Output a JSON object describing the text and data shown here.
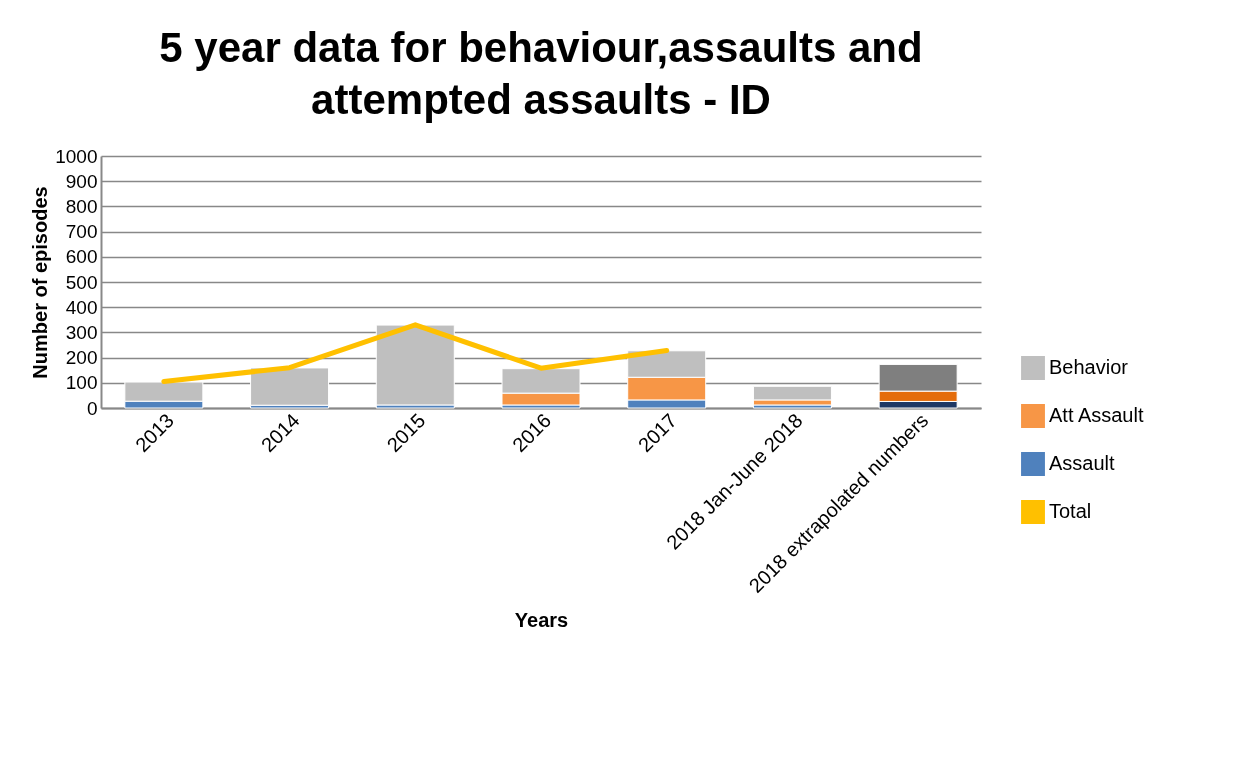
{
  "chart_data": {
    "type": "bar",
    "title": "5 year data for behaviour,assaults and attempted assaults - ID",
    "xlabel": "Years",
    "ylabel": "Number of episodes",
    "categories": [
      "2013",
      "2014",
      "2015",
      "2016",
      "2017",
      "2018 Jan-June 2018",
      "2018 extrapolated numbers"
    ],
    "stacked": true,
    "series": [
      {
        "name": "Assault",
        "color": "#4f81bd",
        "colors": [
          "#4f81bd",
          "#4f81bd",
          "#4f81bd",
          "#4f81bd",
          "#4f81bd",
          "#4f81bd",
          "#1f3864"
        ],
        "values": [
          27,
          11,
          12,
          12,
          32,
          12,
          26
        ]
      },
      {
        "name": "Att Assault",
        "color": "#f79646",
        "colors": [
          "#f79646",
          "#f79646",
          "#f79646",
          "#f79646",
          "#f79646",
          "#f79646",
          "#e46c0a"
        ],
        "values": [
          null,
          null,
          null,
          47,
          90,
          20,
          41
        ]
      },
      {
        "name": "Behavior",
        "color": "#bfbfbf",
        "colors": [
          "#bfbfbf",
          "#bfbfbf",
          "#bfbfbf",
          "#bfbfbf",
          "#bfbfbf",
          "#bfbfbf",
          "#7f7f7f"
        ],
        "values": [
          76,
          148,
          317,
          97,
          105,
          54,
          106
        ]
      },
      {
        "name": "Total",
        "type": "line",
        "color": "#ffc000",
        "values": [
          105,
          160,
          330,
          158,
          228,
          null,
          null
        ]
      }
    ],
    "ylim": [
      0,
      1000
    ],
    "yticks": [
      0,
      100,
      200,
      300,
      400,
      500,
      600,
      700,
      800,
      900,
      1000
    ],
    "grid": "y",
    "legend": "right"
  }
}
